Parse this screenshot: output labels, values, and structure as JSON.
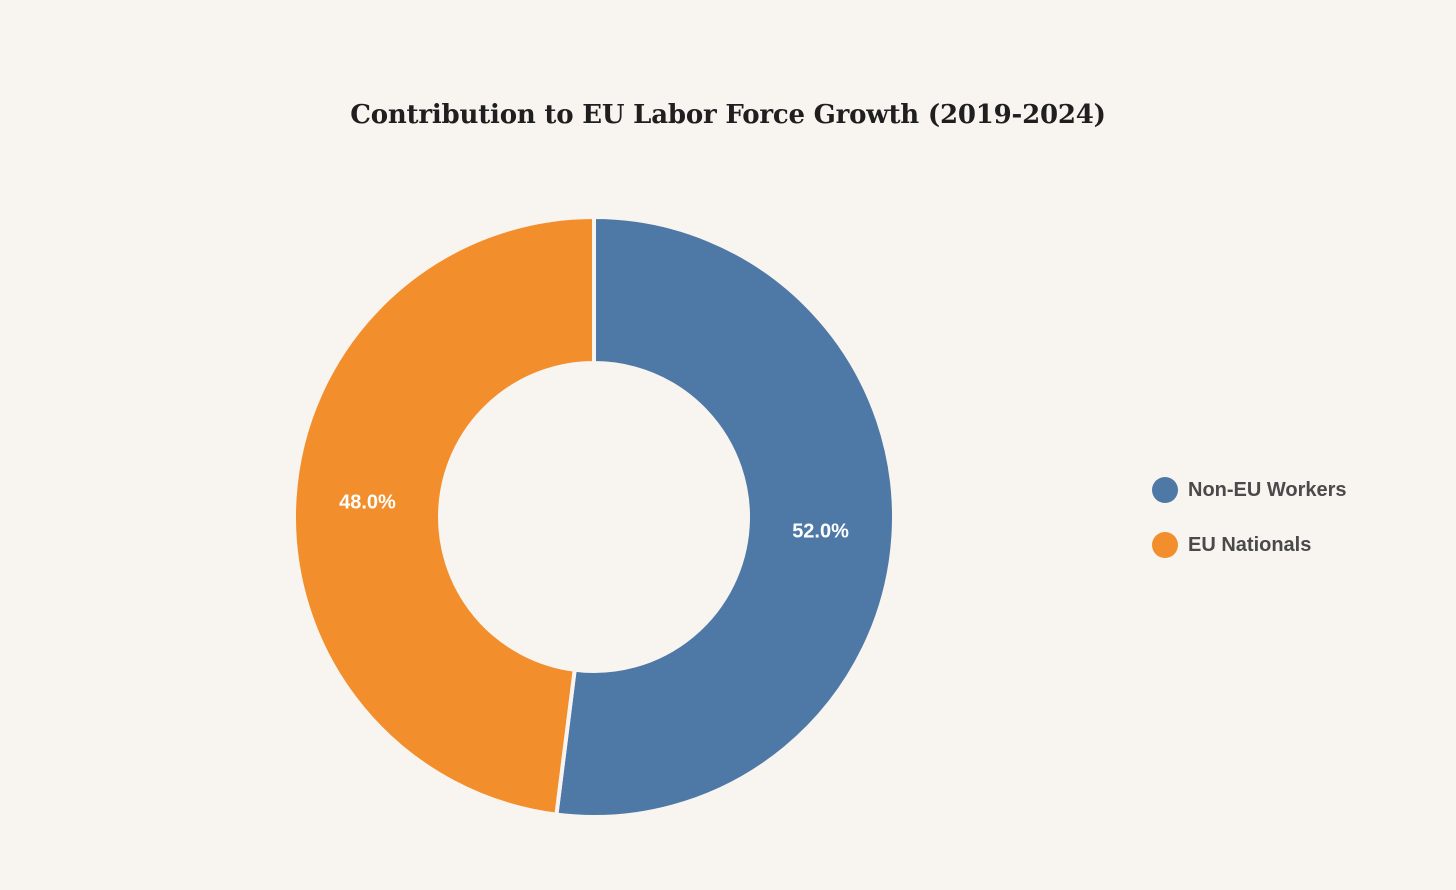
{
  "chart_data": {
    "type": "pie",
    "variant": "donut",
    "title": "Contribution to EU Labor Force Growth (2019-2024)",
    "series": [
      {
        "name": "Non-EU Workers",
        "value": 52.0,
        "label": "52.0%",
        "color": "#4e79a7"
      },
      {
        "name": "EU Nationals",
        "value": 48.0,
        "label": "48.0%",
        "color": "#f28e2b"
      }
    ],
    "legend_position": "right"
  }
}
